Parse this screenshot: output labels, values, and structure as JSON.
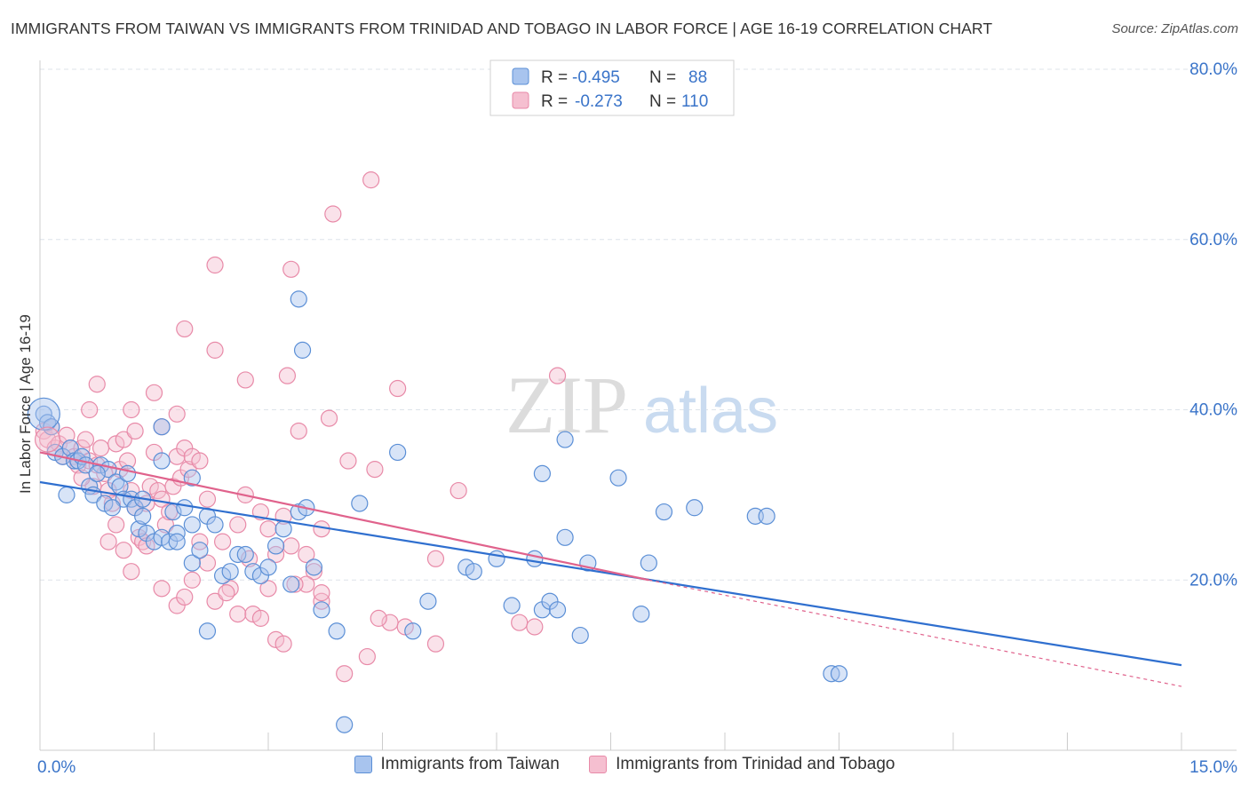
{
  "header": {
    "title": "IMMIGRANTS FROM TAIWAN VS IMMIGRANTS FROM TRINIDAD AND TOBAGO IN LABOR FORCE | AGE 16-19 CORRELATION CHART",
    "source": "Source: ZipAtlas.com"
  },
  "watermark": {
    "zip": "ZIP",
    "atlas": "atlas"
  },
  "colors": {
    "blue": "#5b8fd6",
    "blue_fill": "#a8c4ee",
    "blue_line": "#2f6fcf",
    "pink": "#e88aa8",
    "pink_fill": "#f5bfd0",
    "pink_line": "#e0628c",
    "value_text": "#3a74c9",
    "grid": "#dde3ea"
  },
  "legend_top": {
    "rows": [
      {
        "r_label": "R =",
        "r_value": "-0.495",
        "n_label": "N =",
        "n_value": "88"
      },
      {
        "r_label": "R =",
        "r_value": "-0.273",
        "n_label": "N =",
        "n_value": "110"
      }
    ]
  },
  "legend_bottom": {
    "series1": "Immigrants from Taiwan",
    "series2": "Immigrants from Trinidad and Tobago"
  },
  "chart_data": {
    "type": "scatter",
    "title": "IMMIGRANTS FROM TAIWAN VS IMMIGRANTS FROM TRINIDAD AND TOBAGO IN LABOR FORCE | AGE 16-19 CORRELATION CHART",
    "xlabel": "",
    "ylabel": "In Labor Force | Age 16-19",
    "xlim": [
      0,
      15
    ],
    "ylim": [
      0,
      80
    ],
    "x_tick_labels": [
      "0.0%",
      "15.0%"
    ],
    "y_ticks": [
      20,
      40,
      60,
      80
    ],
    "y_tick_labels": [
      "20.0%",
      "40.0%",
      "60.0%",
      "80.0%"
    ],
    "grid": true,
    "legend_position": "top-center",
    "series": [
      {
        "name": "Immigrants from Taiwan",
        "r": -0.495,
        "n": 88,
        "trend": {
          "x": [
            0,
            15
          ],
          "y": [
            31.5,
            10.0
          ]
        },
        "points": [
          [
            0.05,
            39.5
          ],
          [
            0.1,
            38.5
          ],
          [
            0.15,
            38
          ],
          [
            0.2,
            35
          ],
          [
            0.3,
            34.5
          ],
          [
            0.35,
            30.0
          ],
          [
            0.4,
            35.5
          ],
          [
            0.45,
            34.0
          ],
          [
            0.5,
            34.0
          ],
          [
            0.55,
            34.5
          ],
          [
            0.6,
            33.5
          ],
          [
            0.65,
            31.0
          ],
          [
            0.7,
            30.0
          ],
          [
            0.8,
            33.5
          ],
          [
            0.85,
            29.0
          ],
          [
            0.9,
            33.0
          ],
          [
            1.0,
            31.5
          ],
          [
            1.05,
            31.0
          ],
          [
            1.1,
            29.5
          ],
          [
            1.15,
            32.5
          ],
          [
            1.2,
            29.5
          ],
          [
            1.25,
            28.5
          ],
          [
            1.3,
            26.0
          ],
          [
            1.35,
            27.5
          ],
          [
            1.4,
            25.5
          ],
          [
            1.5,
            24.5
          ],
          [
            1.6,
            25.0
          ],
          [
            1.7,
            24.5
          ],
          [
            1.75,
            28.0
          ],
          [
            1.8,
            25.5
          ],
          [
            1.6,
            34.0
          ],
          [
            1.6,
            38.0
          ],
          [
            1.9,
            28.5
          ],
          [
            2.0,
            26.5
          ],
          [
            2.0,
            22.0
          ],
          [
            2.1,
            23.5
          ],
          [
            2.2,
            27.5
          ],
          [
            2.3,
            26.5
          ],
          [
            2.4,
            20.5
          ],
          [
            2.5,
            21.0
          ],
          [
            2.6,
            23.0
          ],
          [
            2.7,
            23.0
          ],
          [
            2.8,
            21.0
          ],
          [
            2.9,
            20.5
          ],
          [
            3.0,
            21.5
          ],
          [
            3.1,
            24.0
          ],
          [
            3.2,
            26.0
          ],
          [
            3.3,
            19.5
          ],
          [
            3.4,
            28.0
          ],
          [
            3.5,
            28.5
          ],
          [
            3.6,
            21.5
          ],
          [
            3.7,
            16.5
          ],
          [
            3.9,
            14.0
          ],
          [
            4.2,
            29.0
          ],
          [
            4.0,
            3.0
          ],
          [
            4.7,
            35.0
          ],
          [
            4.9,
            14.0
          ],
          [
            5.1,
            17.5
          ],
          [
            5.6,
            21.5
          ],
          [
            6.0,
            22.5
          ],
          [
            6.2,
            17.0
          ],
          [
            6.5,
            22.5
          ],
          [
            6.6,
            16.5
          ],
          [
            6.7,
            17.5
          ],
          [
            6.8,
            16.5
          ],
          [
            6.9,
            25.0
          ],
          [
            7.1,
            13.5
          ],
          [
            7.2,
            22.0
          ],
          [
            6.6,
            32.5
          ],
          [
            6.9,
            36.5
          ],
          [
            7.6,
            32.0
          ],
          [
            7.9,
            16.0
          ],
          [
            8.0,
            22.0
          ],
          [
            8.2,
            28.0
          ],
          [
            8.6,
            28.5
          ],
          [
            9.4,
            27.5
          ],
          [
            9.55,
            27.5
          ],
          [
            10.4,
            9.0
          ],
          [
            10.5,
            9.0
          ],
          [
            3.4,
            53.0
          ],
          [
            3.45,
            47.0
          ],
          [
            1.8,
            24.5
          ],
          [
            2.2,
            14.0
          ],
          [
            0.95,
            28.5
          ],
          [
            0.75,
            32.5
          ],
          [
            1.35,
            29.5
          ],
          [
            2.0,
            32.0
          ],
          [
            5.7,
            21.0
          ]
        ]
      },
      {
        "name": "Immigrants from Trinidad and Tobago",
        "r": -0.273,
        "n": 110,
        "trend": {
          "x": [
            0,
            8.0
          ],
          "y": [
            35.0,
            20.0
          ]
        },
        "trend_dashed": {
          "x": [
            8.0,
            15
          ],
          "y": [
            20.0,
            7.5
          ]
        },
        "points": [
          [
            0.05,
            37.5
          ],
          [
            0.1,
            36.5
          ],
          [
            0.15,
            38.0
          ],
          [
            0.2,
            35.5
          ],
          [
            0.25,
            36.0
          ],
          [
            0.3,
            34.5
          ],
          [
            0.35,
            37.0
          ],
          [
            0.4,
            35.5
          ],
          [
            0.45,
            34.5
          ],
          [
            0.5,
            33.5
          ],
          [
            0.55,
            35.5
          ],
          [
            0.6,
            36.5
          ],
          [
            0.65,
            34.0
          ],
          [
            0.7,
            31.0
          ],
          [
            0.75,
            33.5
          ],
          [
            0.8,
            35.5
          ],
          [
            0.85,
            32.5
          ],
          [
            0.9,
            30.5
          ],
          [
            0.95,
            29.0
          ],
          [
            1.0,
            36.0
          ],
          [
            1.05,
            33.0
          ],
          [
            1.1,
            36.5
          ],
          [
            1.15,
            34.0
          ],
          [
            1.2,
            30.5
          ],
          [
            1.25,
            28.5
          ],
          [
            1.3,
            25.0
          ],
          [
            1.35,
            24.5
          ],
          [
            1.4,
            29.0
          ],
          [
            1.45,
            31.0
          ],
          [
            1.5,
            35.0
          ],
          [
            1.55,
            30.5
          ],
          [
            1.6,
            29.5
          ],
          [
            1.65,
            26.5
          ],
          [
            1.7,
            28.0
          ],
          [
            1.75,
            31.0
          ],
          [
            1.8,
            34.5
          ],
          [
            1.85,
            32.0
          ],
          [
            1.9,
            35.5
          ],
          [
            1.95,
            33.0
          ],
          [
            2.0,
            34.5
          ],
          [
            0.75,
            43.0
          ],
          [
            0.65,
            40.0
          ],
          [
            1.2,
            40.0
          ],
          [
            1.5,
            42.0
          ],
          [
            1.6,
            38.0
          ],
          [
            1.8,
            39.5
          ],
          [
            1.9,
            49.5
          ],
          [
            2.3,
            57.0
          ],
          [
            2.3,
            47.0
          ],
          [
            2.7,
            43.5
          ],
          [
            3.3,
            56.5
          ],
          [
            3.25,
            44.0
          ],
          [
            3.85,
            63.0
          ],
          [
            4.35,
            67.0
          ],
          [
            3.4,
            37.5
          ],
          [
            3.8,
            39.0
          ],
          [
            4.05,
            34.0
          ],
          [
            4.4,
            33.0
          ],
          [
            4.7,
            42.5
          ],
          [
            5.5,
            30.5
          ],
          [
            1.2,
            21.0
          ],
          [
            1.4,
            24.0
          ],
          [
            1.6,
            19.0
          ],
          [
            1.8,
            17.0
          ],
          [
            1.9,
            18.0
          ],
          [
            2.0,
            20.0
          ],
          [
            2.2,
            22.0
          ],
          [
            2.3,
            17.5
          ],
          [
            2.5,
            19.0
          ],
          [
            2.6,
            16.0
          ],
          [
            2.8,
            16.0
          ],
          [
            2.9,
            15.5
          ],
          [
            3.0,
            19.0
          ],
          [
            3.1,
            13.0
          ],
          [
            3.2,
            12.5
          ],
          [
            3.3,
            24.0
          ],
          [
            3.5,
            23.0
          ],
          [
            3.6,
            21.0
          ],
          [
            3.7,
            17.5
          ],
          [
            4.0,
            9.0
          ],
          [
            4.3,
            11.0
          ],
          [
            4.6,
            15.0
          ],
          [
            4.8,
            14.5
          ],
          [
            5.2,
            12.5
          ],
          [
            5.2,
            22.5
          ],
          [
            6.3,
            15.0
          ],
          [
            6.5,
            14.5
          ],
          [
            6.8,
            44.0
          ],
          [
            3.7,
            18.5
          ],
          [
            2.1,
            24.5
          ],
          [
            2.4,
            24.5
          ],
          [
            2.7,
            30.0
          ],
          [
            2.9,
            28.0
          ],
          [
            3.0,
            26.0
          ],
          [
            3.1,
            23.0
          ],
          [
            3.2,
            27.5
          ],
          [
            3.5,
            19.5
          ],
          [
            3.7,
            26.0
          ],
          [
            1.0,
            26.5
          ],
          [
            2.2,
            29.5
          ],
          [
            0.9,
            24.5
          ],
          [
            1.1,
            23.5
          ],
          [
            2.6,
            26.5
          ],
          [
            2.75,
            22.5
          ],
          [
            2.45,
            18.5
          ],
          [
            3.35,
            19.5
          ],
          [
            2.1,
            34.0
          ],
          [
            1.25,
            37.5
          ],
          [
            0.55,
            32.0
          ],
          [
            4.45,
            15.5
          ]
        ]
      }
    ]
  }
}
